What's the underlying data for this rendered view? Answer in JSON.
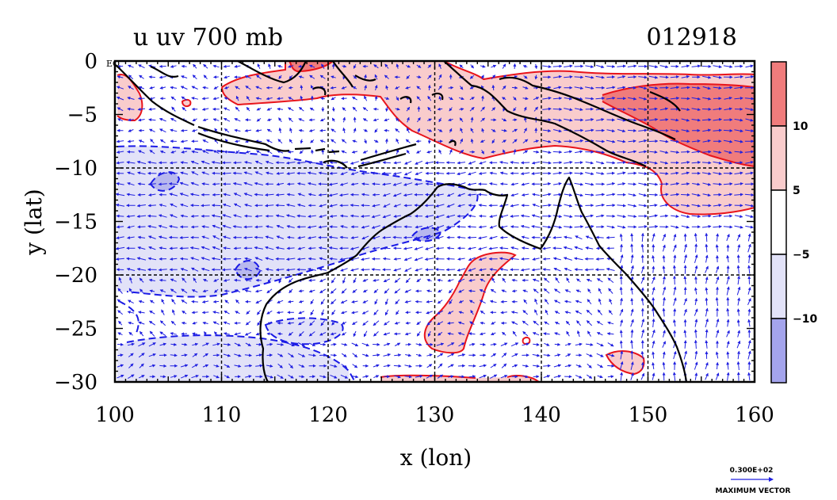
{
  "title_left": "u uv 700 mb",
  "title_right": "012918",
  "equator_label": "EQ",
  "x_axis": {
    "label": "x (lon)",
    "ticks": [
      100,
      110,
      120,
      130,
      140,
      150,
      160
    ],
    "range": [
      100,
      160
    ]
  },
  "y_axis": {
    "label": "y (lat)",
    "ticks": [
      0,
      -5,
      -10,
      -15,
      -20,
      -25,
      -30
    ],
    "tick_labels": [
      "0",
      "−5",
      "−10",
      "−15",
      "−20",
      "−25",
      "−30"
    ],
    "range": [
      -30,
      0
    ]
  },
  "colorbar": {
    "labels": [
      "10",
      "5",
      "−5",
      "−10"
    ],
    "colors": [
      "#f07c7c",
      "#f9cccc",
      "#ffffff",
      "#e2e2f8",
      "#a4a4ec"
    ]
  },
  "vector_key": {
    "value": "0.300E+02",
    "caption": "MAXIMUM VECTOR"
  },
  "colors": {
    "positive_contour": "#e8141b",
    "negative_contour": "#1a1ae6",
    "vectors": "#2020e0",
    "coast": "#000000"
  }
}
